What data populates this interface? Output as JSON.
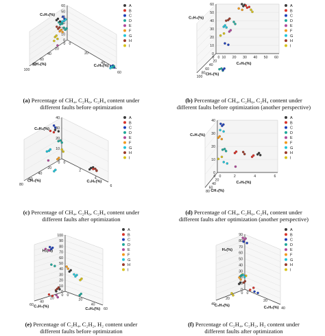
{
  "categories": [
    "A",
    "B",
    "C",
    "D",
    "E",
    "F",
    "G",
    "H",
    "I"
  ],
  "colors": [
    "#3a3a3a",
    "#d9342b",
    "#1f3fb8",
    "#20a89a",
    "#b04a9a",
    "#f29a1e",
    "#22c4d8",
    "#9a3a2a",
    "#d6c21a"
  ],
  "chart_data": [
    {
      "type": "scatter",
      "caption_label": "(a)",
      "caption_lines": [
        "Percentage of CH₄, C₂H₆, C₂H₄ content under",
        "different faults before optimization"
      ],
      "axes": {
        "a": "CH₄(%)",
        "b": "C₂H₆(%)",
        "c": "C₂H₄(%)"
      },
      "ticks": {
        "a": [
          "0",
          "20",
          "40",
          "60",
          "80",
          "100"
        ],
        "b": [
          "0",
          "20",
          "40",
          "60"
        ],
        "c": [
          "0",
          "10",
          "20",
          "30",
          "40",
          "50",
          "60"
        ]
      }
    },
    {
      "type": "scatter",
      "caption_label": "(b)",
      "caption_lines": [
        "Percentage of CH₄, C₂H₆, C₂H₄ content under",
        "different faults before optimization (another perspective)"
      ],
      "axes": {
        "a": "C₂H₆(%)",
        "b": "CH₄(%)",
        "c": "C₂H₄(%)"
      },
      "ticks": {
        "a": [
          "0",
          "10",
          "20",
          "30",
          "40",
          "50",
          "60"
        ],
        "b": [
          "0",
          "20",
          "40",
          "60",
          "80",
          "100"
        ],
        "c": [
          "0",
          "10",
          "20",
          "30",
          "40",
          "50",
          "60"
        ]
      }
    },
    {
      "type": "scatter",
      "caption_label": "(c)",
      "caption_lines": [
        "Percentage of CH₄, C₂H₆, C₂H₄ content under",
        "different faults after optimization"
      ],
      "axes": {
        "a": "CH₄(%)",
        "b": "C₂H₆(%)",
        "c": "C₂H₄(%)"
      },
      "ticks": {
        "a": [
          "0",
          "20",
          "40",
          "60",
          "80"
        ],
        "b": [
          "0",
          "2",
          "4",
          "6"
        ],
        "c": [
          "0",
          "10",
          "20",
          "30",
          "40"
        ]
      }
    },
    {
      "type": "scatter",
      "caption_label": "(d)",
      "caption_lines": [
        "Percentage of CH₄, C₂H₆, C₂H₄ content under",
        "different faults after optimization (another perspective)"
      ],
      "axes": {
        "a": "C₂H₆(%)",
        "b": "CH₄(%)",
        "c": "C₂H₄(%)"
      },
      "ticks": {
        "a": [
          "0",
          "2",
          "4",
          "6"
        ],
        "b": [
          "0",
          "20",
          "40",
          "60",
          "80"
        ],
        "c": [
          "0",
          "10",
          "20",
          "30",
          "40"
        ]
      }
    },
    {
      "type": "scatter",
      "caption_label": "(e)",
      "caption_lines": [
        "Percentage of C₂H₄, C₂H₂, H₂ content under",
        "different faults before optimization"
      ],
      "axes": {
        "a": "C₂H₄(%)",
        "b": "C₂H₂(%)",
        "c": "H₂(%)"
      },
      "ticks": {
        "a": [
          "0",
          "20",
          "40",
          "60"
        ],
        "b": [
          "0",
          "20",
          "40",
          "60"
        ],
        "c": [
          "0",
          "10",
          "20",
          "30",
          "40",
          "50",
          "60",
          "70",
          "80",
          "90",
          "100"
        ]
      }
    },
    {
      "type": "scatter",
      "caption_label": "(f)",
      "caption_lines": [
        "Percentage of C₂H₄, C₂H₂, H₂ content under",
        "different faults after optimization"
      ],
      "axes": {
        "a": "C₂H₄(%)",
        "b": "C₂H₂(%)",
        "c": "H₂(%)"
      },
      "ticks": {
        "a": [
          "0",
          "20",
          "40"
        ],
        "b": [
          "0",
          "20",
          "40"
        ],
        "c": [
          "0",
          "10",
          "20",
          "30",
          "40",
          "50",
          "60",
          "70",
          "80",
          "90"
        ]
      }
    }
  ]
}
